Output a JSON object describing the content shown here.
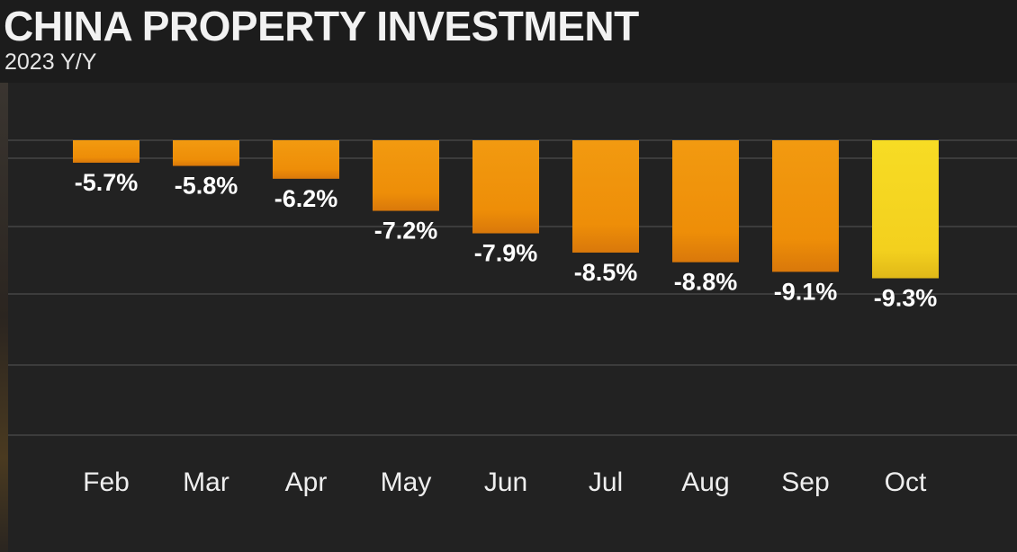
{
  "header": {
    "title": "CHINA PROPERTY INVESTMENT",
    "subtitle": "2023 Y/Y"
  },
  "chart_data": {
    "type": "bar",
    "title": "CHINA PROPERTY INVESTMENT",
    "subtitle": "2023 Y/Y",
    "xlabel": "",
    "ylabel": "",
    "categories": [
      "Feb",
      "Mar",
      "Apr",
      "May",
      "Jun",
      "Jul",
      "Aug",
      "Sep",
      "Oct"
    ],
    "values": [
      -5.7,
      -5.8,
      -6.2,
      -7.2,
      -7.9,
      -8.5,
      -8.8,
      -9.1,
      -9.3
    ],
    "data_labels": [
      "-5.7%",
      "-5.8%",
      "-6.2%",
      "-7.2%",
      "-7.9%",
      "-8.5%",
      "-8.8%",
      "-9.1%",
      "-9.3%"
    ],
    "ylim": [
      -9.5,
      -5.0
    ],
    "grid": true,
    "legend": "none",
    "colors": {
      "bar": "#f0900a",
      "highlight_bar": "#f5d520",
      "highlight_category": "Oct",
      "background": "#222222",
      "header_background": "#1c1c1c",
      "gridline": "#3c3c3c",
      "text": "#ffffff"
    }
  }
}
